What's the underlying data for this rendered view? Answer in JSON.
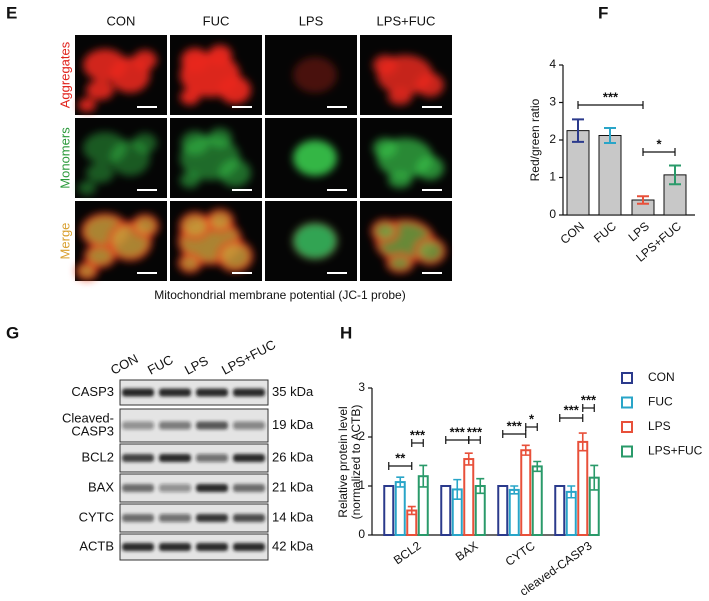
{
  "panel_e": {
    "letter": "E",
    "columns": [
      "CON",
      "FUC",
      "LPS",
      "LPS+FUC"
    ],
    "rows": [
      "Aggregates",
      "Monomers",
      "Merge"
    ],
    "caption": "Mitochondrial membrane potential (JC-1 probe)"
  },
  "panel_g": {
    "letter": "G",
    "lanes": [
      "CON",
      "FUC",
      "LPS",
      "LPS+FUC"
    ],
    "rows": [
      {
        "label": "CASP3",
        "kda": "35 kDa"
      },
      {
        "label_lines": [
          "Cleaved-",
          "CASP3"
        ],
        "kda": "19 kDa"
      },
      {
        "label": "BCL2",
        "kda": "26 kDa"
      },
      {
        "label": "BAX",
        "kda": "21 kDa"
      },
      {
        "label": "CYTC",
        "kda": "14 kDa"
      },
      {
        "label": "ACTB",
        "kda": "42 kDa"
      }
    ]
  },
  "chart_data": [
    {
      "type": "bar",
      "label": "F",
      "ylabel": "Red/green ratio",
      "categories": [
        "CON",
        "FUC",
        "LPS",
        "LPS+FUC"
      ],
      "values": [
        2.25,
        2.12,
        0.4,
        1.07
      ],
      "errors": [
        0.3,
        0.2,
        0.1,
        0.25
      ],
      "color": "#c8c8c8",
      "error_colors": [
        "#2b3a8c",
        "#29a5c8",
        "#e8503a",
        "#2a9a6a"
      ],
      "ylim": [
        0,
        4
      ],
      "yticks": [
        0,
        1,
        2,
        3,
        4
      ],
      "annotations": [
        "***",
        "*"
      ]
    },
    {
      "type": "bar",
      "label": "H",
      "ylabel_lines": [
        "Relative protein level",
        "(normalized to ACTB)"
      ],
      "categories": [
        "BCL2",
        "BAX",
        "CYTC",
        "cleaved-CASP3"
      ],
      "series": [
        {
          "name": "CON",
          "color": "#2b3a8c",
          "values": [
            1.0,
            1.0,
            1.0,
            1.0
          ],
          "errors": [
            0,
            0,
            0,
            0
          ]
        },
        {
          "name": "FUC",
          "color": "#29a5c8",
          "values": [
            1.08,
            0.93,
            0.92,
            0.88
          ],
          "errors": [
            0.1,
            0.2,
            0.08,
            0.12
          ]
        },
        {
          "name": "LPS",
          "color": "#e8503a",
          "values": [
            0.5,
            1.55,
            1.73,
            1.9
          ],
          "errors": [
            0.08,
            0.12,
            0.1,
            0.18
          ]
        },
        {
          "name": "LPS+FUC",
          "color": "#2a9a6a",
          "values": [
            1.2,
            1.0,
            1.4,
            1.17
          ],
          "errors": [
            0.22,
            0.15,
            0.1,
            0.25
          ]
        }
      ],
      "ylim": [
        0,
        3
      ],
      "yticks": [
        0,
        1,
        2,
        3
      ],
      "legend": "right",
      "annotations": [
        "**",
        "***",
        "***",
        "***",
        "***",
        "*",
        "***",
        "***"
      ]
    }
  ]
}
